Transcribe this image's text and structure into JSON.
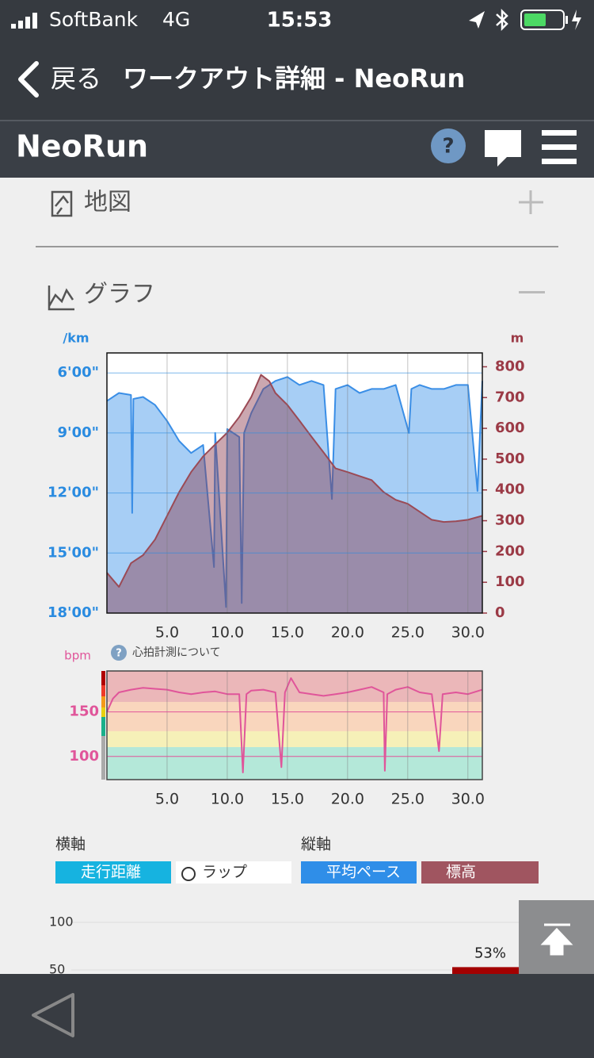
{
  "status_bar": {
    "carrier": "SoftBank",
    "network": "4G",
    "time": "15:53"
  },
  "nav": {
    "back": "戻る",
    "title": "ワークアウト詳細 - NeoRun"
  },
  "app_header": {
    "logo": "NeoRun",
    "help": "?"
  },
  "sections": [
    {
      "title": "地図"
    },
    {
      "title": "グラフ"
    }
  ],
  "pace_chart": {
    "type": "line",
    "y_unit": "/km",
    "y2_unit": "m",
    "xlim": [
      0,
      31.2
    ],
    "xticks": [
      {
        "value": 5,
        "label": "5.0"
      },
      {
        "value": 10,
        "label": "10.0"
      },
      {
        "value": 15,
        "label": "15.0"
      },
      {
        "value": 20,
        "label": "20.0"
      },
      {
        "value": 25,
        "label": "25.0"
      },
      {
        "value": 30,
        "label": "30.0"
      }
    ],
    "ylim": [
      18,
      5
    ],
    "yticks": [
      {
        "value": 6,
        "label": "6'00\""
      },
      {
        "value": 9,
        "label": "9'00\""
      },
      {
        "value": 12,
        "label": "12'00\""
      },
      {
        "value": 15,
        "label": "15'00\""
      },
      {
        "value": 18,
        "label": "18'00\""
      }
    ],
    "y2lim": [
      0,
      845
    ],
    "y2ticks": [
      0,
      100,
      200,
      300,
      400,
      500,
      600,
      700,
      800
    ],
    "grid": true,
    "series": [
      {
        "color": "#3a8ee6",
        "x": [
          0,
          1,
          2,
          2.1,
          2.2,
          3,
          4,
          5,
          6,
          7,
          8,
          8.9,
          9,
          9.9,
          10,
          11,
          11.2,
          11.4,
          12,
          13,
          14,
          15,
          16,
          17,
          18,
          18.7,
          19,
          20,
          21,
          22,
          23,
          24,
          25.1,
          25.3,
          26,
          27,
          28,
          29,
          30,
          30.8,
          31.2
        ],
        "values": [
          7.4,
          7.0,
          7.1,
          13.0,
          7.3,
          7.2,
          7.6,
          8.4,
          9.4,
          10.0,
          9.6,
          15.7,
          9.0,
          17.7,
          8.8,
          9.2,
          17.5,
          9.0,
          8.0,
          6.8,
          6.4,
          6.2,
          6.6,
          6.4,
          6.6,
          12.3,
          6.8,
          6.6,
          7.0,
          6.8,
          6.8,
          6.6,
          9.0,
          6.8,
          6.6,
          6.8,
          6.8,
          6.6,
          6.6,
          11.9,
          6.4
        ]
      },
      {
        "color": "#9b4a55",
        "axis": "y2",
        "x": [
          0,
          1,
          2,
          3,
          4,
          5,
          6,
          7,
          8,
          9,
          10,
          11,
          12,
          12.8,
          13.5,
          14,
          15,
          16,
          17,
          18,
          19,
          20,
          21,
          22,
          23,
          24,
          25,
          26,
          27,
          28,
          29,
          30,
          31.2
        ],
        "values": [
          131,
          85,
          162,
          188,
          239,
          316,
          393,
          458,
          509,
          548,
          586,
          637,
          702,
          774,
          753,
          715,
          676,
          625,
          573,
          522,
          470,
          458,
          445,
          432,
          393,
          368,
          355,
          329,
          303,
          296,
          298,
          303,
          316
        ]
      }
    ]
  },
  "heart_chart": {
    "type": "line",
    "y_unit": "bpm",
    "note": "心拍計測について",
    "color": "#e0559a",
    "xlim": [
      0,
      31.2
    ],
    "xticks": [
      {
        "value": 5,
        "label": "5.0"
      },
      {
        "value": 10,
        "label": "10.0"
      },
      {
        "value": 15,
        "label": "15.0"
      },
      {
        "value": 20,
        "label": "20.0"
      },
      {
        "value": 25,
        "label": "25.0"
      },
      {
        "value": 30,
        "label": "30.0"
      }
    ],
    "ylim": [
      74,
      196
    ],
    "yticks": [
      100,
      150
    ],
    "grid": true,
    "x": [
      0,
      0.5,
      1,
      2,
      3,
      4,
      5,
      6,
      7,
      8,
      9,
      10,
      11,
      11.3,
      11.6,
      12,
      13,
      14,
      14.5,
      14.8,
      15.3,
      16,
      17,
      18,
      19,
      20,
      21,
      22,
      23,
      23.1,
      23.3,
      24,
      25,
      26,
      27,
      27.6,
      27.9,
      29,
      30,
      31.2
    ],
    "values": [
      150,
      165,
      172,
      175,
      177,
      176,
      175,
      172,
      170,
      172,
      173,
      170,
      170,
      82,
      170,
      174,
      175,
      172,
      88,
      172,
      188,
      172,
      170,
      168,
      170,
      172,
      175,
      178,
      172,
      84,
      170,
      175,
      178,
      172,
      170,
      106,
      170,
      172,
      170,
      175
    ]
  },
  "axis_options": {
    "x_label": "横軸",
    "y_label": "縦軸",
    "buttons": [
      "走行距離",
      "ラップ",
      "平均ペース",
      "標高"
    ]
  },
  "zone_chart": {
    "type": "bar",
    "values": [
      53
    ],
    "value_labels": [
      "53%"
    ],
    "color": "#a30000",
    "ylim": [
      0,
      100
    ],
    "yticks": [
      50,
      100
    ],
    "grid": true
  }
}
